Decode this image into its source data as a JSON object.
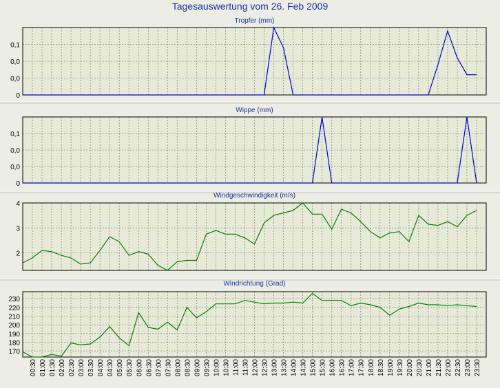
{
  "page_title": "Tagesauswertung vom 26. Feb 2009",
  "time_labels": [
    "00:30",
    "01:00",
    "01:30",
    "02:00",
    "02:30",
    "03:00",
    "03:30",
    "04:00",
    "04:30",
    "05:00",
    "05:30",
    "06:00",
    "06:30",
    "07:00",
    "07:30",
    "08:00",
    "08:30",
    "09:00",
    "09:30",
    "10:00",
    "10:30",
    "11:00",
    "11:30",
    "12:00",
    "12:30",
    "13:00",
    "13:30",
    "14:00",
    "14:30",
    "15:00",
    "15:30",
    "16:00",
    "16:30",
    "17:00",
    "17:30",
    "18:00",
    "18:30",
    "19:00",
    "19:30",
    "20:00",
    "20:30",
    "21:00",
    "21:30",
    "22:00",
    "22:30",
    "23:00",
    "23:30"
  ],
  "chart_data": [
    {
      "type": "line",
      "title": "Tropfer (mm)",
      "color": "#0000cc",
      "ylim": [
        0,
        0.2
      ],
      "yticks": [
        0,
        0.05,
        0.1,
        0.15
      ],
      "ytick_labels": [
        "0",
        "0,0",
        "0,0",
        "0,1"
      ],
      "values": [
        0,
        0,
        0,
        0,
        0,
        0,
        0,
        0,
        0,
        0,
        0,
        0,
        0,
        0,
        0,
        0,
        0,
        0,
        0,
        0,
        0,
        0,
        0,
        0,
        0,
        0,
        0.2,
        0.14,
        0,
        0,
        0,
        0,
        0,
        0,
        0,
        0,
        0,
        0,
        0,
        0,
        0,
        0,
        0,
        0.09,
        0.19,
        0.11,
        0.06,
        0.06
      ]
    },
    {
      "type": "line",
      "title": "Wippe (mm)",
      "color": "#0000cc",
      "ylim": [
        0,
        0.2
      ],
      "yticks": [
        0,
        0.05,
        0.1,
        0.15
      ],
      "ytick_labels": [
        "0",
        "0,0",
        "0,0",
        "0,1"
      ],
      "values": [
        0,
        0,
        0,
        0,
        0,
        0,
        0,
        0,
        0,
        0,
        0,
        0,
        0,
        0,
        0,
        0,
        0,
        0,
        0,
        0,
        0,
        0,
        0,
        0,
        0,
        0,
        0,
        0,
        0,
        0,
        0,
        0.2,
        0,
        0,
        0,
        0,
        0,
        0,
        0,
        0,
        0,
        0,
        0,
        0,
        0,
        0,
        0.2,
        0
      ]
    },
    {
      "type": "line",
      "title": "Windgeschwindigkeit (m/s)",
      "color": "#008000",
      "ylim": [
        1.3,
        4
      ],
      "yticks": [
        2,
        3,
        4
      ],
      "ytick_labels": [
        "2",
        "3",
        "4"
      ],
      "values": [
        1.6,
        1.8,
        2.1,
        2.05,
        1.9,
        1.8,
        1.55,
        1.6,
        2.1,
        2.65,
        2.45,
        1.9,
        2.05,
        1.95,
        1.5,
        1.3,
        1.65,
        1.7,
        1.7,
        2.75,
        2.9,
        2.75,
        2.75,
        2.6,
        2.35,
        3.2,
        3.5,
        3.6,
        3.7,
        4.0,
        3.55,
        3.55,
        2.95,
        3.75,
        3.6,
        3.25,
        2.85,
        2.6,
        2.8,
        2.85,
        2.45,
        3.5,
        3.15,
        3.1,
        3.25,
        3.05,
        3.5,
        3.7
      ]
    },
    {
      "type": "line",
      "title": "Windrichtung (Grad)",
      "color": "#008000",
      "ylim": [
        163,
        238
      ],
      "yticks": [
        170,
        180,
        190,
        200,
        210,
        220,
        230
      ],
      "ytick_labels": [
        "170",
        "180",
        "190",
        "200",
        "210",
        "220",
        "230"
      ],
      "values": [
        169,
        163,
        163,
        166,
        164,
        179,
        177,
        178,
        186,
        198,
        185,
        176,
        214,
        197,
        195,
        203,
        194,
        220,
        208,
        215,
        224,
        224,
        224,
        228,
        226,
        224,
        225,
        225,
        226,
        225,
        236,
        228,
        228,
        228,
        222,
        225,
        223,
        220,
        211,
        218,
        221,
        225,
        223,
        223,
        222,
        223,
        222,
        221
      ]
    }
  ]
}
